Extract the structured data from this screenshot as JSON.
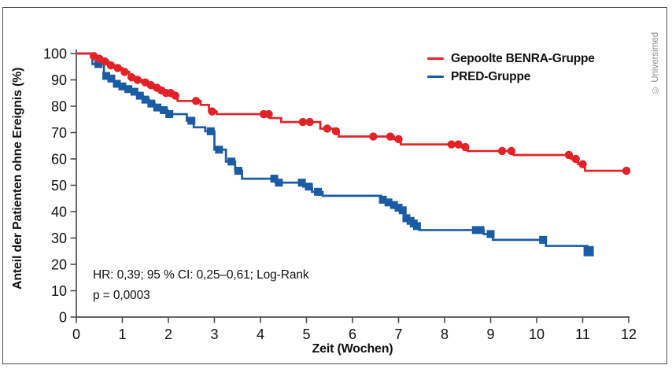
{
  "frame": {
    "copyright": "© Universimed"
  },
  "annotation": {
    "line1": "HR: 0,39; 95 % CI: 0,25–0,61; Log-Rank",
    "line2": "p = 0,0003"
  },
  "chart_data": {
    "type": "line",
    "subtype": "kaplan-meier-step",
    "title": "",
    "xlabel": "Zeit (Wochen)",
    "ylabel": "Anteil der Patienten ohne Ereignis (%)",
    "xlim": [
      0,
      12
    ],
    "ylim": [
      0,
      100
    ],
    "xticks": [
      0,
      1,
      2,
      3,
      4,
      5,
      6,
      7,
      8,
      9,
      10,
      11,
      12
    ],
    "yticks": [
      0,
      10,
      20,
      30,
      40,
      50,
      60,
      70,
      80,
      90,
      100
    ],
    "grid": false,
    "legend_position": "top-right",
    "axis_color": "#4d4d4d",
    "text_color": "#111111",
    "series": [
      {
        "name": "Gepoolte BENRA-Gruppe",
        "color": "#e32227",
        "marker": "circle",
        "steps": [
          [
            0,
            100
          ],
          [
            0.33,
            99
          ],
          [
            0.45,
            98
          ],
          [
            0.58,
            97
          ],
          [
            0.7,
            95.5
          ],
          [
            0.85,
            94.5
          ],
          [
            1.0,
            93
          ],
          [
            1.15,
            91
          ],
          [
            1.28,
            90
          ],
          [
            1.42,
            89
          ],
          [
            1.55,
            88
          ],
          [
            1.68,
            87
          ],
          [
            1.8,
            86
          ],
          [
            1.92,
            85
          ],
          [
            2.1,
            84
          ],
          [
            2.2,
            82
          ],
          [
            2.7,
            80.5
          ],
          [
            2.88,
            78
          ],
          [
            3.05,
            77
          ],
          [
            4.2,
            75.5
          ],
          [
            4.45,
            74
          ],
          [
            5.3,
            71.5
          ],
          [
            5.58,
            70.5
          ],
          [
            5.7,
            68.5
          ],
          [
            6.9,
            67.5
          ],
          [
            7.05,
            65.5
          ],
          [
            8.35,
            64.5
          ],
          [
            8.5,
            63
          ],
          [
            9.5,
            61.5
          ],
          [
            10.75,
            60
          ],
          [
            10.9,
            58
          ],
          [
            11.05,
            55.5
          ],
          [
            12.0,
            55.5
          ]
        ],
        "censor_times": [
          0.38,
          0.5,
          0.62,
          0.75,
          0.9,
          1.05,
          1.2,
          1.33,
          1.5,
          1.62,
          1.75,
          1.85,
          1.95,
          2.05,
          2.15,
          2.6,
          2.95,
          4.07,
          4.18,
          4.92,
          5.07,
          5.45,
          5.64,
          6.45,
          6.82,
          7.0,
          8.15,
          8.3,
          8.45,
          9.25,
          9.45,
          10.7,
          10.85,
          11.0,
          11.95
        ],
        "large_censor_times": []
      },
      {
        "name": "PRED-Gruppe",
        "color": "#1a5ba6",
        "marker": "square",
        "steps": [
          [
            0,
            100
          ],
          [
            0.35,
            96
          ],
          [
            0.6,
            91.5
          ],
          [
            0.72,
            90.5
          ],
          [
            0.82,
            88.5
          ],
          [
            0.95,
            87.5
          ],
          [
            1.08,
            86.5
          ],
          [
            1.2,
            85.5
          ],
          [
            1.32,
            84
          ],
          [
            1.45,
            82.5
          ],
          [
            1.58,
            81
          ],
          [
            1.7,
            79.5
          ],
          [
            1.85,
            78.5
          ],
          [
            1.98,
            77
          ],
          [
            2.4,
            74.5
          ],
          [
            2.55,
            72
          ],
          [
            2.8,
            70.5
          ],
          [
            3.0,
            63.5
          ],
          [
            3.25,
            59
          ],
          [
            3.45,
            55.5
          ],
          [
            3.6,
            52.5
          ],
          [
            4.33,
            51
          ],
          [
            4.93,
            49.5
          ],
          [
            5.12,
            47.5
          ],
          [
            5.35,
            46
          ],
          [
            6.62,
            44.5
          ],
          [
            6.73,
            43.5
          ],
          [
            6.85,
            42.5
          ],
          [
            6.97,
            41.5
          ],
          [
            7.05,
            40.5
          ],
          [
            7.13,
            37.5
          ],
          [
            7.22,
            36.5
          ],
          [
            7.3,
            35.5
          ],
          [
            7.36,
            34.5
          ],
          [
            7.45,
            33
          ],
          [
            8.85,
            31.5
          ],
          [
            9.05,
            29.3
          ],
          [
            10.2,
            27
          ],
          [
            11.1,
            25
          ],
          [
            11.2,
            25
          ]
        ],
        "censor_times": [
          0.48,
          0.65,
          0.76,
          0.88,
          1.0,
          1.13,
          1.26,
          1.38,
          1.5,
          1.63,
          1.76,
          1.9,
          2.02,
          2.5,
          2.92,
          3.1,
          3.37,
          3.52,
          4.3,
          4.4,
          4.9,
          5.05,
          5.25,
          6.66,
          6.78,
          6.9,
          7.0,
          7.09,
          7.17,
          7.26,
          7.33,
          7.4,
          8.68,
          8.78,
          9.0,
          10.14,
          11.13
        ],
        "large_censor_times": [
          11.13
        ]
      }
    ],
    "annotation_text": [
      "HR: 0,39; 95 % CI: 0,25–0,61; Log-Rank",
      "p = 0,0003"
    ]
  }
}
